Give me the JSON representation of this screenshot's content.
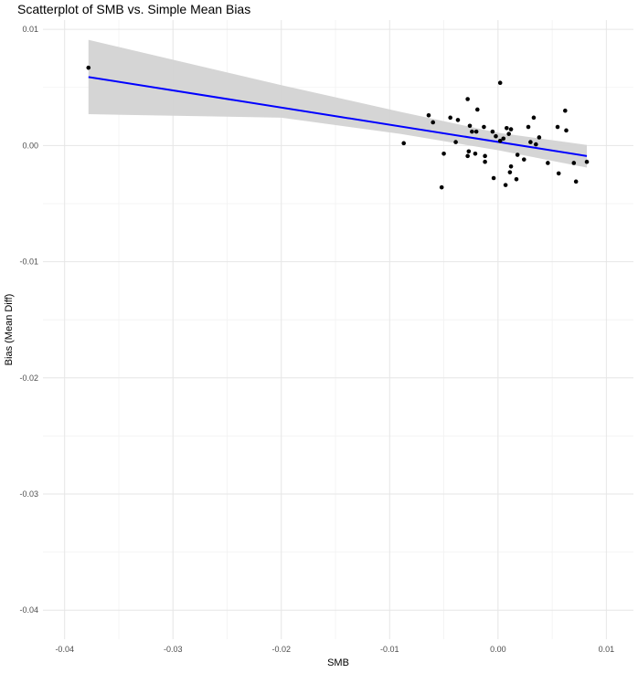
{
  "chart_data": {
    "type": "scatter",
    "title": "Scatterplot of SMB vs. Simple Mean Bias",
    "xlabel": "SMB",
    "ylabel": "Bias (Mean Diff)",
    "xlim": [
      -0.042,
      0.0125
    ],
    "ylim": [
      -0.0425,
      0.0108
    ],
    "x_ticks": [
      -0.04,
      -0.03,
      -0.02,
      -0.01,
      0.0,
      0.01
    ],
    "x_tick_labels": [
      "-0.04",
      "-0.03",
      "-0.02",
      "-0.01",
      "0.00",
      "0.01"
    ],
    "y_ticks": [
      0.01,
      0.0,
      -0.01,
      -0.02,
      -0.03,
      -0.04
    ],
    "y_tick_labels": [
      "0.01",
      "0.00",
      "-0.01",
      "-0.02",
      "-0.03",
      "-0.04"
    ],
    "grid": true,
    "points": [
      {
        "x": -0.0378,
        "y": 0.0067
      },
      {
        "x": -0.0087,
        "y": 0.0002
      },
      {
        "x": -0.0064,
        "y": 0.0026
      },
      {
        "x": -0.006,
        "y": 0.002
      },
      {
        "x": -0.0052,
        "y": -0.0036
      },
      {
        "x": -0.005,
        "y": -0.0007
      },
      {
        "x": -0.0044,
        "y": 0.0024
      },
      {
        "x": -0.0039,
        "y": 0.0003
      },
      {
        "x": -0.0037,
        "y": 0.0022
      },
      {
        "x": -0.0028,
        "y": 0.004
      },
      {
        "x": -0.0028,
        "y": -0.0009
      },
      {
        "x": -0.0027,
        "y": -0.0005
      },
      {
        "x": -0.0026,
        "y": 0.0017
      },
      {
        "x": -0.0024,
        "y": 0.0012
      },
      {
        "x": -0.0021,
        "y": -0.0007
      },
      {
        "x": -0.002,
        "y": 0.0012
      },
      {
        "x": -0.0019,
        "y": 0.0031
      },
      {
        "x": -0.0013,
        "y": 0.0016
      },
      {
        "x": -0.0012,
        "y": -0.0009
      },
      {
        "x": -0.0012,
        "y": -0.0014
      },
      {
        "x": -0.0005,
        "y": 0.0012
      },
      {
        "x": -0.0004,
        "y": -0.0028
      },
      {
        "x": -0.0002,
        "y": 0.0008
      },
      {
        "x": 0.0002,
        "y": 0.0054
      },
      {
        "x": 0.0002,
        "y": 0.0004
      },
      {
        "x": 0.0005,
        "y": 0.0006
      },
      {
        "x": 0.0007,
        "y": -0.0034
      },
      {
        "x": 0.0008,
        "y": 0.0015
      },
      {
        "x": 0.001,
        "y": 0.001
      },
      {
        "x": 0.0011,
        "y": -0.0023
      },
      {
        "x": 0.0012,
        "y": -0.0018
      },
      {
        "x": 0.0012,
        "y": 0.0014
      },
      {
        "x": 0.0017,
        "y": -0.0029
      },
      {
        "x": 0.0018,
        "y": -0.0008
      },
      {
        "x": 0.0024,
        "y": -0.0012
      },
      {
        "x": 0.0028,
        "y": 0.0016
      },
      {
        "x": 0.003,
        "y": 0.0003
      },
      {
        "x": 0.0033,
        "y": 0.0024
      },
      {
        "x": 0.0035,
        "y": 0.0001
      },
      {
        "x": 0.0038,
        "y": 0.0007
      },
      {
        "x": 0.0046,
        "y": -0.0015
      },
      {
        "x": 0.0055,
        "y": 0.0016
      },
      {
        "x": 0.0056,
        "y": -0.0024
      },
      {
        "x": 0.0062,
        "y": 0.003
      },
      {
        "x": 0.0063,
        "y": 0.0013
      },
      {
        "x": 0.007,
        "y": -0.0015
      },
      {
        "x": 0.0072,
        "y": -0.0031
      },
      {
        "x": 0.0082,
        "y": -0.0014
      }
    ],
    "fit_line": {
      "x": [
        -0.0378,
        0.0082
      ],
      "y": [
        0.0059,
        -0.0009
      ],
      "color": "#0000ff"
    },
    "confidence_band": {
      "x": [
        -0.0378,
        -0.02,
        -0.009,
        0.0,
        0.0082
      ],
      "upper": [
        0.0091,
        0.0052,
        0.0029,
        0.0011,
        5e-05
      ],
      "lower": [
        0.0027,
        0.0024,
        0.001,
        -0.0004,
        -0.0019
      ],
      "color": "#d3d3d3"
    },
    "point_color": "#000000"
  }
}
